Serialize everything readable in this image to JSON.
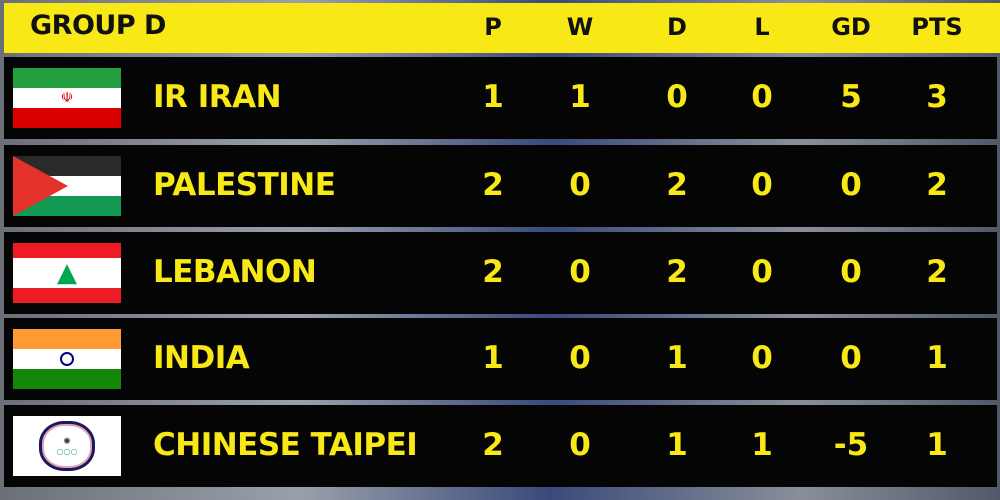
{
  "header": {
    "title": "GROUP D",
    "columns": [
      "P",
      "W",
      "D",
      "L",
      "GD",
      "PTS"
    ]
  },
  "colors": {
    "accent": "#f7e816",
    "row_bg": "#050505"
  },
  "rows": [
    {
      "team": "IR IRAN",
      "flag": "iran-flag-icon",
      "stats": [
        "1",
        "1",
        "0",
        "0",
        "5",
        "3"
      ]
    },
    {
      "team": "PALESTINE",
      "flag": "palestine-flag-icon",
      "stats": [
        "2",
        "0",
        "2",
        "0",
        "0",
        "2"
      ]
    },
    {
      "team": "LEBANON",
      "flag": "lebanon-flag-icon",
      "stats": [
        "2",
        "0",
        "2",
        "0",
        "0",
        "2"
      ]
    },
    {
      "team": "INDIA",
      "flag": "india-flag-icon",
      "stats": [
        "1",
        "0",
        "1",
        "0",
        "0",
        "1"
      ]
    },
    {
      "team": "CHINESE TAIPEI",
      "flag": "chinese-taipei-flag-icon",
      "stats": [
        "2",
        "0",
        "1",
        "1",
        "-5",
        "1"
      ]
    }
  ]
}
